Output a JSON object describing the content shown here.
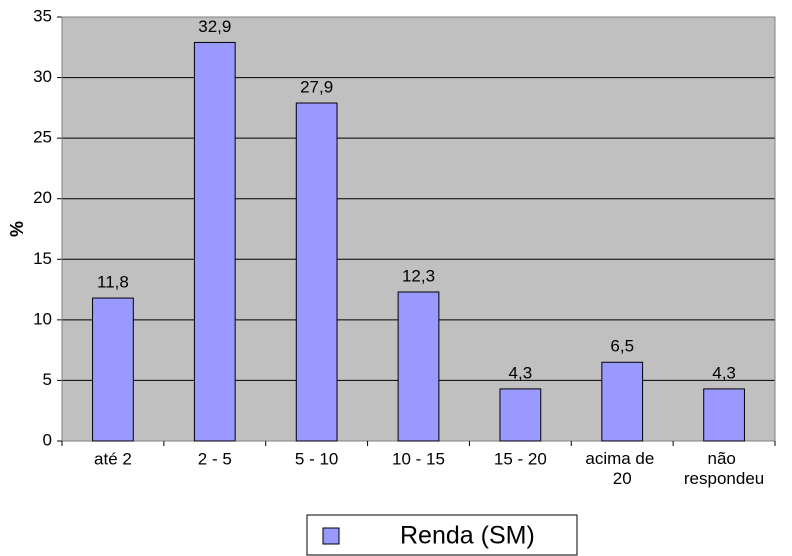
{
  "chart_data": {
    "type": "bar",
    "ylabel": "%",
    "categories": [
      "até 2",
      "2 - 5",
      "5 - 10",
      "10 - 15",
      "15 - 20",
      "acima de 20",
      "não respondeu"
    ],
    "series": [
      {
        "name": "Renda (SM)",
        "color": "#9999ff",
        "values": [
          11.8,
          32.9,
          27.9,
          12.3,
          4.3,
          6.5,
          4.3
        ],
        "value_labels": [
          "11,8",
          "32,9",
          "27,9",
          "12,3",
          "4,3",
          "6,5",
          "4,3"
        ]
      }
    ],
    "ylim": [
      0,
      35
    ],
    "yticks": [
      0,
      5,
      10,
      15,
      20,
      25,
      30,
      35
    ],
    "grid": true,
    "legend": "bottom"
  }
}
